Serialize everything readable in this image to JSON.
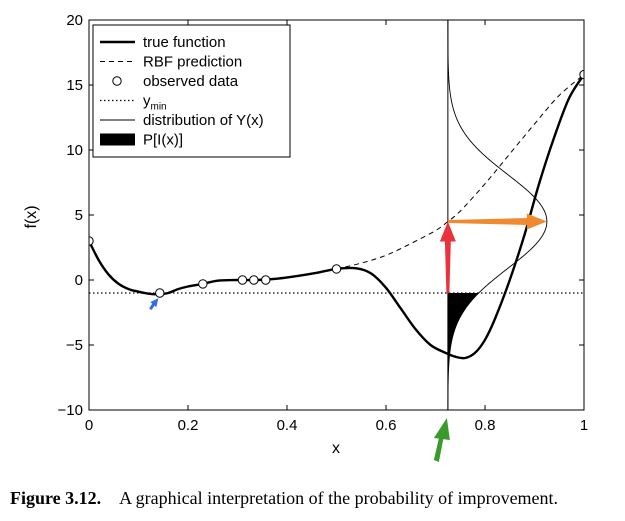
{
  "chart_data": {
    "type": "line",
    "xlabel": "x",
    "ylabel": "f(x)",
    "xlim": [
      0,
      1
    ],
    "ylim": [
      -10,
      20
    ],
    "xticks": [
      0,
      0.2,
      0.4,
      0.6,
      0.8,
      1
    ],
    "xtick_labels": [
      "0",
      "0.2",
      "0.4",
      "0.6",
      "0.8",
      "1"
    ],
    "yticks": [
      -10,
      -5,
      0,
      5,
      10,
      15,
      20
    ],
    "ytick_labels": [
      "−10",
      "−5",
      "0",
      "5",
      "10",
      "15",
      "20"
    ],
    "grid": false,
    "legend_position": "top-left",
    "legend": [
      {
        "label": "true function",
        "style": "thick-solid"
      },
      {
        "label": "RBF prediction",
        "style": "dashed"
      },
      {
        "label": "observed data",
        "style": "circle-marker"
      },
      {
        "label": "y",
        "subscript": "min",
        "style": "dotted"
      },
      {
        "label": "distribution of Y(x)",
        "style": "thin-solid"
      },
      {
        "label": "P[I(x)]",
        "style": "filled-black"
      }
    ],
    "series": [
      {
        "name": "true function",
        "x": [
          0,
          0.02,
          0.04,
          0.06,
          0.08,
          0.1,
          0.12,
          0.14,
          0.16,
          0.18,
          0.2,
          0.23,
          0.26,
          0.3,
          0.34,
          0.38,
          0.42,
          0.46,
          0.5,
          0.54,
          0.57,
          0.6,
          0.63,
          0.66,
          0.69,
          0.72,
          0.74,
          0.76,
          0.78,
          0.8,
          0.82,
          0.85,
          0.88,
          0.91,
          0.94,
          0.97,
          1.0
        ],
        "y": [
          3.0,
          1.5,
          0.4,
          -0.3,
          -0.7,
          -0.9,
          -1.05,
          -1.1,
          -1.0,
          -0.7,
          -0.5,
          -0.3,
          -0.05,
          0.0,
          0.0,
          0.1,
          0.3,
          0.55,
          0.85,
          0.9,
          0.5,
          -0.6,
          -2.2,
          -3.8,
          -5.0,
          -5.6,
          -5.9,
          -6.0,
          -5.6,
          -4.6,
          -3.0,
          0.0,
          3.5,
          7.5,
          11.0,
          14.0,
          15.8
        ]
      },
      {
        "name": "RBF prediction",
        "x": [
          0.5,
          0.55,
          0.6,
          0.65,
          0.7,
          0.725,
          0.75,
          0.8,
          0.85,
          0.9,
          0.95,
          1.0
        ],
        "y": [
          0.85,
          1.3,
          1.9,
          2.8,
          3.8,
          4.5,
          5.3,
          7.4,
          9.7,
          12.0,
          14.2,
          15.8
        ]
      },
      {
        "name": "observed data",
        "x": [
          0,
          0.143,
          0.23,
          0.31,
          0.333,
          0.357,
          0.5,
          1.0
        ],
        "y": [
          3.0,
          -1.0,
          -0.3,
          0.0,
          0.0,
          0.0,
          0.85,
          15.8
        ]
      }
    ],
    "y_min": -1.0,
    "distribution": {
      "x_location": 0.725,
      "mean": 4.5,
      "std": 3.6
    },
    "arrows": [
      {
        "color": "#2f6fe0",
        "points_to": [
          0.13,
          -1.55
        ]
      },
      {
        "color": "#e8323c",
        "from": [
          0.725,
          -1.0
        ],
        "to": [
          0.725,
          4.5
        ]
      },
      {
        "color": "#f08a30",
        "from": [
          0.725,
          4.5
        ],
        "to": [
          0.925,
          4.5
        ]
      },
      {
        "color": "#3a9a2c",
        "points_to": [
          0.725,
          -10
        ]
      }
    ]
  },
  "caption": {
    "label": "Figure 3.12.",
    "text": "A graphical interpretation of the probability of improvement."
  }
}
